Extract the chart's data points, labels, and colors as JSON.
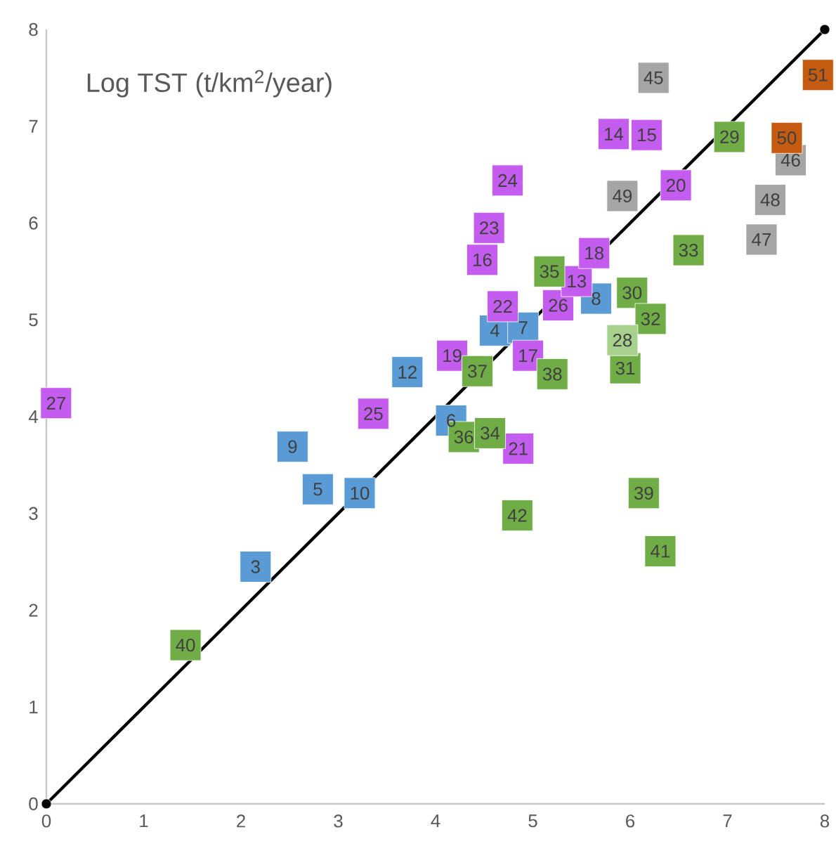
{
  "chart_data": {
    "type": "scatter",
    "title": "Log TST (t/km$^{2}$/year)",
    "marker": "square",
    "xlim": [
      0,
      8
    ],
    "ylim": [
      0,
      8
    ],
    "xticks": [
      0,
      1,
      2,
      3,
      4,
      5,
      6,
      7,
      8
    ],
    "yticks": [
      0,
      1,
      2,
      3,
      4,
      5,
      6,
      7,
      8
    ],
    "series": [
      {
        "type": "line",
        "color": "#000000",
        "marker": "circle",
        "x": [
          0,
          8
        ],
        "values": [
          0,
          8
        ]
      },
      {
        "color": "#5b9bd5",
        "x": [
          2.15,
          2.79,
          2.53,
          3.22,
          3.71,
          4.16,
          4.61,
          4.9,
          5.65
        ],
        "values": [
          2.45,
          3.25,
          3.69,
          3.21,
          4.46,
          3.96,
          4.89,
          4.92,
          5.22
        ]
      },
      {
        "color": "#c55cf0",
        "x": [
          0.1,
          3.36,
          4.17,
          4.95,
          4.85,
          4.69,
          5.26,
          5.45,
          5.63,
          4.48,
          4.55,
          4.74,
          5.83,
          6.17,
          6.47
        ],
        "values": [
          4.14,
          4.03,
          4.63,
          4.63,
          3.67,
          5.14,
          5.15,
          5.4,
          5.69,
          5.62,
          5.95,
          6.44,
          6.92,
          6.91,
          6.39
        ]
      },
      {
        "color": "#70ad47",
        "x": [
          1.43,
          4.29,
          4.56,
          4.43,
          5.2,
          5.17,
          6.02,
          6.21,
          5.95,
          6.6,
          7.02,
          4.84,
          6.14,
          6.31
        ],
        "values": [
          1.64,
          3.79,
          3.83,
          4.47,
          4.44,
          5.5,
          5.28,
          5.01,
          4.5,
          5.72,
          6.89,
          2.98,
          3.21,
          2.61
        ]
      },
      {
        "color": "#a9d18e",
        "x": [
          5.92
        ],
        "values": [
          4.79
        ]
      },
      {
        "color": "#a5a5a5",
        "x": [
          6.24,
          5.92,
          7.65,
          7.44,
          7.35
        ],
        "values": [
          7.5,
          6.28,
          6.65,
          6.24,
          5.83
        ]
      },
      {
        "color": "#c55a11",
        "x": [
          7.61,
          7.93
        ],
        "values": [
          6.88,
          7.53
        ]
      }
    ],
    "annotations": [
      {
        "text": "3",
        "x": 2.15,
        "y": 2.45
      },
      {
        "text": "5",
        "x": 2.79,
        "y": 3.25
      },
      {
        "text": "9",
        "x": 2.53,
        "y": 3.69
      },
      {
        "text": "10",
        "x": 3.22,
        "y": 3.21
      },
      {
        "text": "12",
        "x": 3.71,
        "y": 4.46
      },
      {
        "text": "6",
        "x": 4.16,
        "y": 3.96
      },
      {
        "text": "4",
        "x": 4.61,
        "y": 4.89
      },
      {
        "text": "7",
        "x": 4.9,
        "y": 4.92
      },
      {
        "text": "8",
        "x": 5.65,
        "y": 5.22
      },
      {
        "text": "27",
        "x": 0.1,
        "y": 4.14
      },
      {
        "text": "25",
        "x": 3.36,
        "y": 4.03
      },
      {
        "text": "19",
        "x": 4.17,
        "y": 4.63
      },
      {
        "text": "17",
        "x": 4.95,
        "y": 4.63
      },
      {
        "text": "21",
        "x": 4.85,
        "y": 3.67
      },
      {
        "text": "22",
        "x": 4.69,
        "y": 5.14
      },
      {
        "text": "26",
        "x": 5.26,
        "y": 5.15
      },
      {
        "text": "13",
        "x": 5.45,
        "y": 5.4
      },
      {
        "text": "18",
        "x": 5.63,
        "y": 5.69
      },
      {
        "text": "16",
        "x": 4.48,
        "y": 5.62
      },
      {
        "text": "23",
        "x": 4.55,
        "y": 5.95
      },
      {
        "text": "24",
        "x": 4.74,
        "y": 6.44
      },
      {
        "text": "14",
        "x": 5.83,
        "y": 6.92
      },
      {
        "text": "15",
        "x": 6.17,
        "y": 6.91
      },
      {
        "text": "20",
        "x": 6.47,
        "y": 6.39
      },
      {
        "text": "40",
        "x": 1.43,
        "y": 1.64
      },
      {
        "text": "36",
        "x": 4.29,
        "y": 3.79
      },
      {
        "text": "34",
        "x": 4.56,
        "y": 3.83
      },
      {
        "text": "37",
        "x": 4.43,
        "y": 4.47
      },
      {
        "text": "38",
        "x": 5.2,
        "y": 4.44
      },
      {
        "text": "35",
        "x": 5.17,
        "y": 5.5
      },
      {
        "text": "30",
        "x": 6.02,
        "y": 5.28
      },
      {
        "text": "32",
        "x": 6.21,
        "y": 5.01
      },
      {
        "text": "31",
        "x": 5.95,
        "y": 4.5
      },
      {
        "text": "33",
        "x": 6.6,
        "y": 5.72
      },
      {
        "text": "29",
        "x": 7.02,
        "y": 6.89
      },
      {
        "text": "42",
        "x": 4.84,
        "y": 2.98
      },
      {
        "text": "39",
        "x": 6.14,
        "y": 3.21
      },
      {
        "text": "41",
        "x": 6.31,
        "y": 2.61
      },
      {
        "text": "28",
        "x": 5.92,
        "y": 4.79
      },
      {
        "text": "45",
        "x": 6.24,
        "y": 7.5
      },
      {
        "text": "49",
        "x": 5.92,
        "y": 6.28
      },
      {
        "text": "46",
        "x": 7.65,
        "y": 6.65
      },
      {
        "text": "48",
        "x": 7.44,
        "y": 6.24
      },
      {
        "text": "47",
        "x": 7.35,
        "y": 5.83
      },
      {
        "text": "50",
        "x": 7.61,
        "y": 6.88
      },
      {
        "text": "51",
        "x": 7.93,
        "y": 7.53
      }
    ]
  }
}
